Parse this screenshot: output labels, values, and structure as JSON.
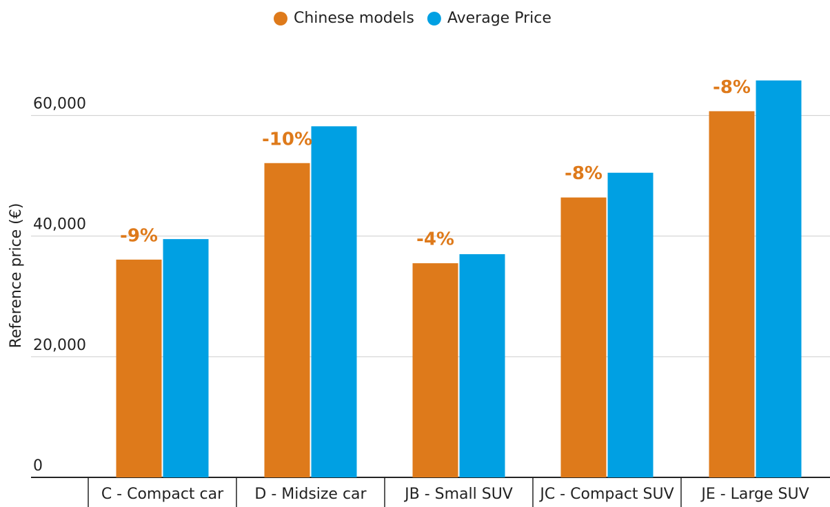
{
  "chart_data": {
    "type": "bar",
    "ylabel": "Reference price (€)",
    "categories": [
      "C - Compact car",
      "D - Midsize car",
      "JB - Small SUV",
      "JC - Compact SUV",
      "JE - Large SUV"
    ],
    "series": [
      {
        "name": "Chinese models",
        "color": "#de7a1b",
        "values": [
          36100,
          52100,
          35500,
          46400,
          60700
        ]
      },
      {
        "name": "Average Price",
        "color": "#00a0e3",
        "values": [
          39500,
          58200,
          37000,
          50500,
          65800
        ]
      }
    ],
    "annotations": [
      "-9%",
      "-10%",
      "-4%",
      "-8%",
      "-8%"
    ],
    "ylim": [
      0,
      70000
    ],
    "yticks": [
      0,
      {
        "value": 20000,
        "label": "20,000"
      },
      {
        "value": 40000,
        "label": "40,000"
      },
      {
        "value": 60000,
        "label": "60,000"
      }
    ],
    "grid": true
  }
}
